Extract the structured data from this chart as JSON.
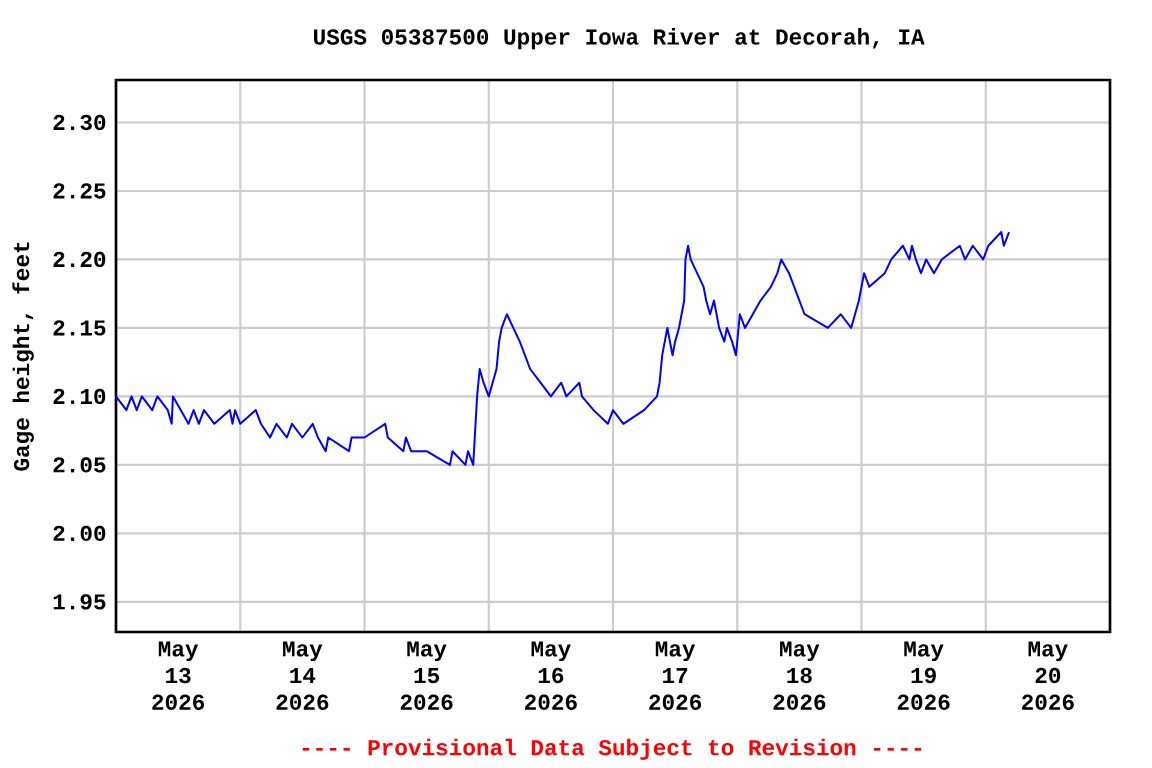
{
  "chart_data": {
    "type": "line",
    "title": "USGS 05387500 Upper Iowa River at Decorah, IA",
    "ylabel": "Gage height, feet",
    "annotations": [
      "---- Provisional Data Subject to Revision ----"
    ],
    "xlim": [
      "2026-05-13T00:00",
      "2026-05-21T00:00"
    ],
    "xticks": [
      {
        "value": "2026-05-13T12:00",
        "label": "May 13 2026"
      },
      {
        "value": "2026-05-14T12:00",
        "label": "May 14 2026"
      },
      {
        "value": "2026-05-15T12:00",
        "label": "May 15 2026"
      },
      {
        "value": "2026-05-16T12:00",
        "label": "May 16 2026"
      },
      {
        "value": "2026-05-17T12:00",
        "label": "May 17 2026"
      },
      {
        "value": "2026-05-18T12:00",
        "label": "May 18 2026"
      },
      {
        "value": "2026-05-19T12:00",
        "label": "May 19 2026"
      },
      {
        "value": "2026-05-20T12:00",
        "label": "May 20 2026"
      },
      {
        "value": "2026-05-14T00:00",
        "label": null
      },
      {
        "value": "2026-05-15T00:00",
        "label": null
      },
      {
        "value": "2026-05-16T00:00",
        "label": null
      },
      {
        "value": "2026-05-17T00:00",
        "label": null
      },
      {
        "value": "2026-05-18T00:00",
        "label": null
      },
      {
        "value": "2026-05-19T00:00",
        "label": null
      },
      {
        "value": "2026-05-20T00:00",
        "label": null
      }
    ],
    "ylim": [
      1.928,
      2.331
    ],
    "yticks": [
      1.95,
      {
        "value": 2.0,
        "label": "2.00"
      },
      2.05,
      {
        "value": 2.1,
        "label": "2.10"
      },
      2.15,
      {
        "value": 2.2,
        "label": "2.20"
      },
      2.25,
      {
        "value": 2.3,
        "label": "2.30"
      }
    ],
    "grid": true,
    "marker": "none",
    "line_style": "solid",
    "series": [
      {
        "color": "#0000ff",
        "x": [
          "2026-05-13T00:00",
          "2026-05-13T02:00",
          "2026-05-13T03:00",
          "2026-05-13T04:00",
          "2026-05-13T05:00",
          "2026-05-13T07:00",
          "2026-05-13T08:00",
          "2026-05-13T10:00",
          "2026-05-13T10:45",
          "2026-05-13T11:00",
          "2026-05-13T12:30",
          "2026-05-13T14:00",
          "2026-05-13T15:00",
          "2026-05-13T16:00",
          "2026-05-13T17:00",
          "2026-05-13T19:00",
          "2026-05-13T22:00",
          "2026-05-13T22:30",
          "2026-05-13T23:00",
          "2026-05-14T00:00",
          "2026-05-14T03:00",
          "2026-05-14T04:00",
          "2026-05-14T05:45",
          "2026-05-14T07:00",
          "2026-05-14T09:00",
          "2026-05-14T10:00",
          "2026-05-14T12:00",
          "2026-05-14T14:00",
          "2026-05-14T15:00",
          "2026-05-14T16:30",
          "2026-05-14T17:00",
          "2026-05-14T21:00",
          "2026-05-14T21:30",
          "2026-05-15T00:00",
          "2026-05-15T04:00",
          "2026-05-15T04:30",
          "2026-05-15T07:30",
          "2026-05-15T08:00",
          "2026-05-15T09:00",
          "2026-05-15T12:00",
          "2026-05-15T16:30",
          "2026-05-15T17:00",
          "2026-05-15T19:30",
          "2026-05-15T20:00",
          "2026-05-15T21:00",
          "2026-05-15T21:45",
          "2026-05-15T22:15",
          "2026-05-15T23:00",
          "2026-05-16T00:00",
          "2026-05-16T00:45",
          "2026-05-16T01:30",
          "2026-05-16T02:00",
          "2026-05-16T02:30",
          "2026-05-16T03:30",
          "2026-05-16T04:45",
          "2026-05-16T06:00",
          "2026-05-16T07:00",
          "2026-05-16T08:00",
          "2026-05-16T10:00",
          "2026-05-16T12:00",
          "2026-05-16T14:00",
          "2026-05-16T15:00",
          "2026-05-16T17:30",
          "2026-05-16T18:00",
          "2026-05-16T20:15",
          "2026-05-16T23:00",
          "2026-05-17T00:00",
          "2026-05-17T02:00",
          "2026-05-17T06:00",
          "2026-05-17T08:30",
          "2026-05-17T09:00",
          "2026-05-17T09:30",
          "2026-05-17T10:00",
          "2026-05-17T10:30",
          "2026-05-17T11:00",
          "2026-05-17T11:30",
          "2026-05-17T12:00",
          "2026-05-17T12:45",
          "2026-05-17T13:15",
          "2026-05-17T13:45",
          "2026-05-17T14:00",
          "2026-05-17T14:30",
          "2026-05-17T15:00",
          "2026-05-17T16:15",
          "2026-05-17T17:30",
          "2026-05-17T18:00",
          "2026-05-17T18:45",
          "2026-05-17T19:30",
          "2026-05-17T20:30",
          "2026-05-17T21:30",
          "2026-05-17T22:00",
          "2026-05-17T23:00",
          "2026-05-17T23:45",
          "2026-05-18T00:30",
          "2026-05-18T01:30",
          "2026-05-18T03:00",
          "2026-05-18T04:30",
          "2026-05-18T06:30",
          "2026-05-18T07:45",
          "2026-05-18T08:30",
          "2026-05-18T10:00",
          "2026-05-18T11:00",
          "2026-05-18T12:00",
          "2026-05-18T13:00",
          "2026-05-18T17:30",
          "2026-05-18T20:00",
          "2026-05-18T22:00",
          "2026-05-18T22:45",
          "2026-05-18T23:30",
          "2026-05-19T00:00",
          "2026-05-19T00:30",
          "2026-05-19T01:30",
          "2026-05-19T04:30",
          "2026-05-19T05:45",
          "2026-05-19T08:00",
          "2026-05-19T09:15",
          "2026-05-19T09:45",
          "2026-05-19T10:30",
          "2026-05-19T11:30",
          "2026-05-19T12:30",
          "2026-05-19T14:00",
          "2026-05-19T15:30",
          "2026-05-19T19:00",
          "2026-05-19T20:00",
          "2026-05-19T21:30",
          "2026-05-19T23:30",
          "2026-05-20T00:30",
          "2026-05-20T03:00",
          "2026-05-20T03:30",
          "2026-05-20T04:30"
        ],
        "values": [
          2.1,
          2.09,
          2.1,
          2.09,
          2.1,
          2.09,
          2.1,
          2.09,
          2.08,
          2.1,
          2.09,
          2.08,
          2.09,
          2.08,
          2.09,
          2.08,
          2.09,
          2.08,
          2.09,
          2.08,
          2.09,
          2.08,
          2.07,
          2.08,
          2.07,
          2.08,
          2.07,
          2.08,
          2.07,
          2.06,
          2.07,
          2.06,
          2.07,
          2.07,
          2.08,
          2.07,
          2.06,
          2.07,
          2.06,
          2.06,
          2.05,
          2.06,
          2.05,
          2.06,
          2.05,
          2.1,
          2.12,
          2.11,
          2.1,
          2.11,
          2.12,
          2.14,
          2.15,
          2.16,
          2.15,
          2.14,
          2.13,
          2.12,
          2.11,
          2.1,
          2.11,
          2.1,
          2.11,
          2.1,
          2.09,
          2.08,
          2.09,
          2.08,
          2.09,
          2.1,
          2.11,
          2.13,
          2.14,
          2.15,
          2.14,
          2.13,
          2.14,
          2.15,
          2.16,
          2.17,
          2.2,
          2.21,
          2.2,
          2.19,
          2.18,
          2.17,
          2.16,
          2.17,
          2.15,
          2.14,
          2.15,
          2.14,
          2.13,
          2.16,
          2.15,
          2.16,
          2.17,
          2.18,
          2.19,
          2.2,
          2.19,
          2.18,
          2.17,
          2.16,
          2.15,
          2.16,
          2.15,
          2.16,
          2.17,
          2.18,
          2.19,
          2.18,
          2.19,
          2.2,
          2.21,
          2.2,
          2.21,
          2.2,
          2.19,
          2.2,
          2.19,
          2.2,
          2.21,
          2.2,
          2.21,
          2.2,
          2.21,
          2.22,
          2.21,
          2.22
        ]
      }
    ]
  }
}
